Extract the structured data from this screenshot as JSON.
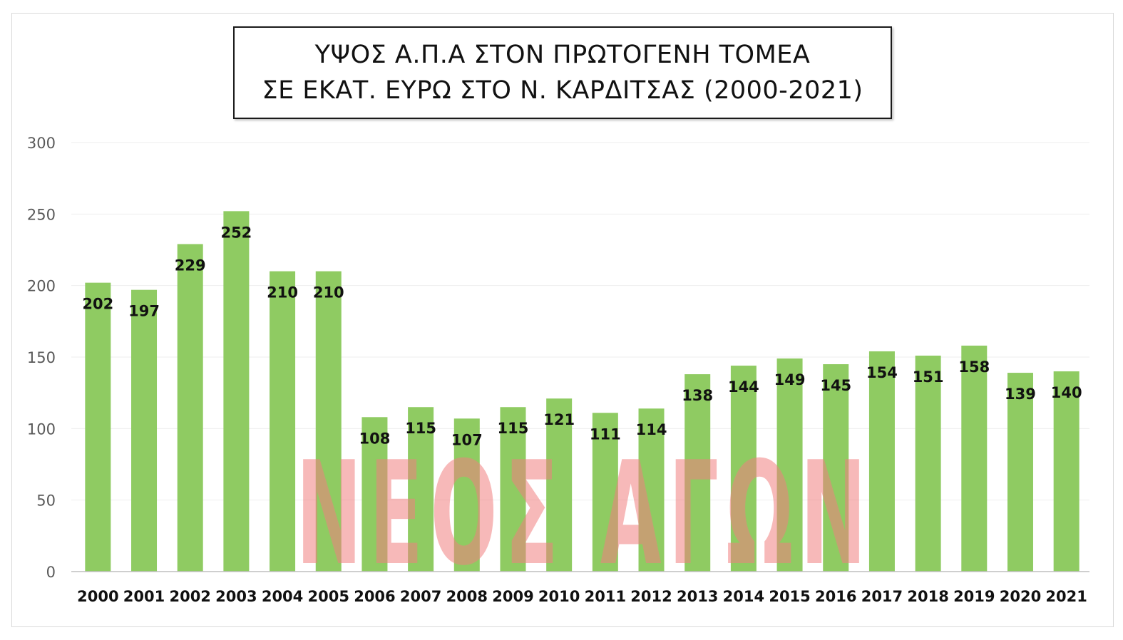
{
  "chart_data": {
    "type": "bar",
    "title_lines": [
      "ΥΨΟΣ Α.Π.Α ΣΤΟΝ ΠΡΩΤΟΓΕΝΗ ΤΟΜΕΑ",
      "ΣΕ ΕΚΑΤ. ΕΥΡΩ ΣΤΟ Ν. ΚΑΡΔΙΤΣΑΣ (2000-2021)"
    ],
    "categories": [
      "2000",
      "2001",
      "2002",
      "2003",
      "2004",
      "2005",
      "2006",
      "2007",
      "2008",
      "2009",
      "2010",
      "2011",
      "2012",
      "2013",
      "2014",
      "2015",
      "2016",
      "2017",
      "2018",
      "2019",
      "2020",
      "2021"
    ],
    "values": [
      202,
      197,
      229,
      252,
      210,
      210,
      108,
      115,
      107,
      115,
      121,
      111,
      114,
      138,
      144,
      149,
      145,
      154,
      151,
      158,
      139,
      140
    ],
    "ylim": [
      0,
      300
    ],
    "yticks": [
      0,
      50,
      100,
      150,
      200,
      250,
      300
    ],
    "grid": true,
    "legend": "none",
    "bar_color": "#8fcb62"
  },
  "watermark": "ΝΕΟΣ ΑΓΩΝ"
}
